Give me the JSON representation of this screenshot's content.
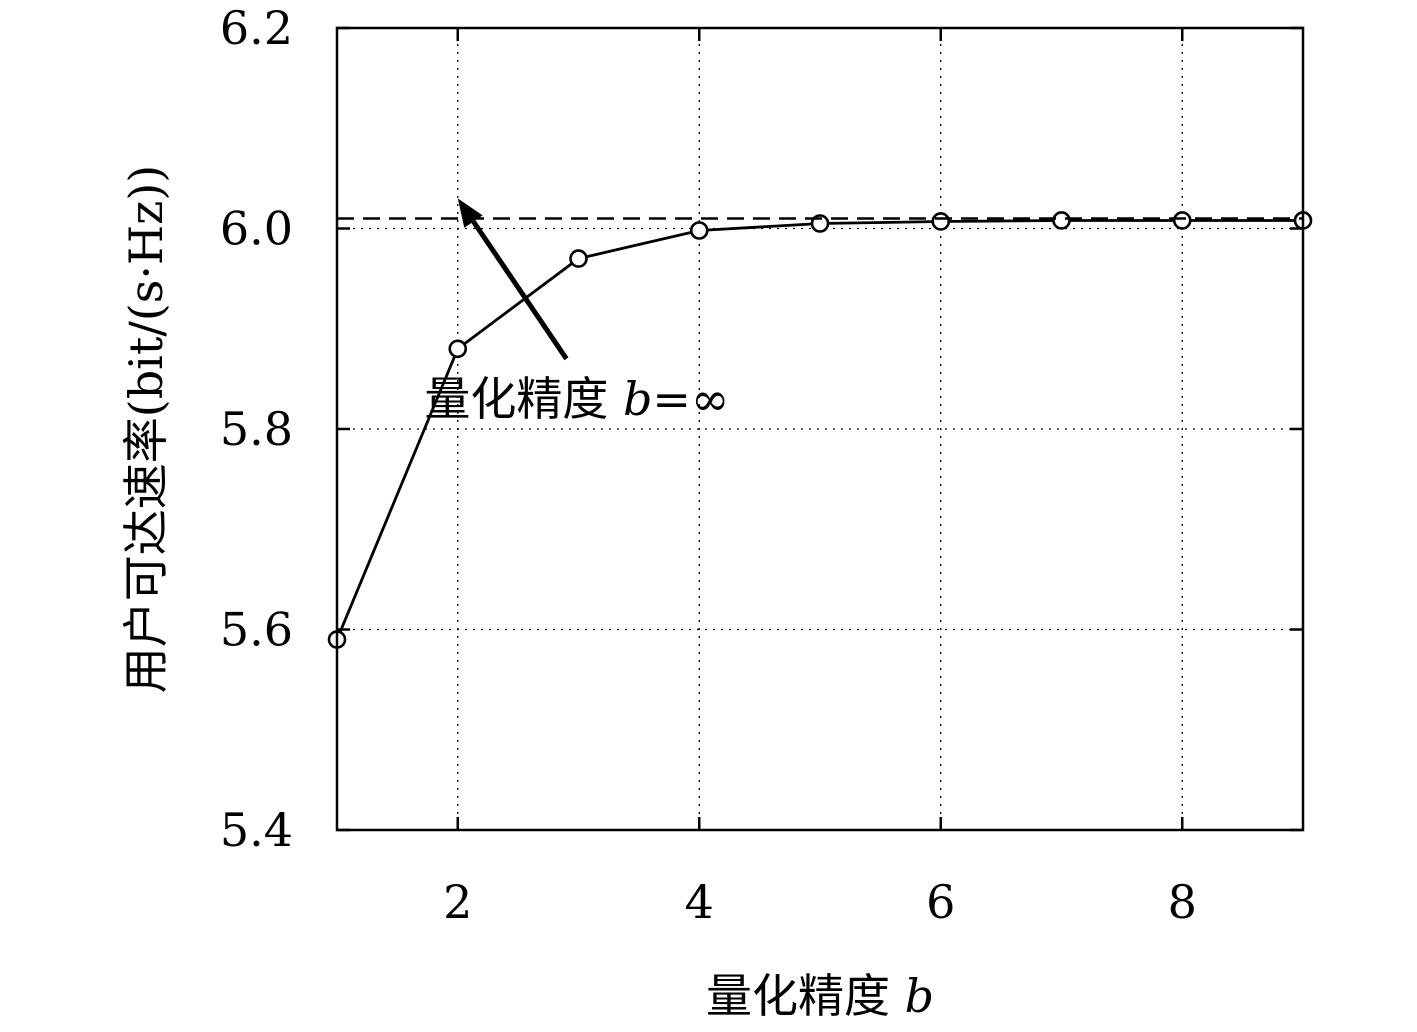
{
  "chart_data": {
    "type": "line",
    "title": "",
    "xlabel_text": "量化精度 ",
    "xlabel_var": "b",
    "ylabel": "用户可达速率(bit/(s·Hz))",
    "xlim": [
      1,
      9
    ],
    "ylim": [
      5.4,
      6.2
    ],
    "xticks": [
      2,
      4,
      6,
      8
    ],
    "xtick_labels": [
      "2",
      "4",
      "6",
      "8"
    ],
    "yticks": [
      5.4,
      5.6,
      5.8,
      6.0,
      6.2
    ],
    "ytick_labels": [
      "5.4",
      "5.6",
      "5.8",
      "6.0",
      "6.2"
    ],
    "grid": true,
    "series": [
      {
        "style": "solid-line-circle-markers",
        "color": "#000000",
        "x": [
          1,
          2,
          3,
          4,
          5,
          6,
          7,
          8,
          9
        ],
        "y": [
          5.59,
          5.88,
          5.97,
          5.998,
          6.005,
          6.007,
          6.008,
          6.008,
          6.008
        ]
      },
      {
        "style": "dashed-line",
        "color": "#000000",
        "x": [
          1,
          9
        ],
        "y": [
          6.01,
          6.01
        ]
      }
    ],
    "annotation": {
      "text_prefix": "量化精度 ",
      "text_var": "b",
      "text_suffix": "=∞",
      "arrow_target": [
        2,
        6.03
      ],
      "arrow_tail": [
        2.9,
        5.87
      ],
      "text_anchor": [
        2.8,
        5.83
      ]
    }
  }
}
